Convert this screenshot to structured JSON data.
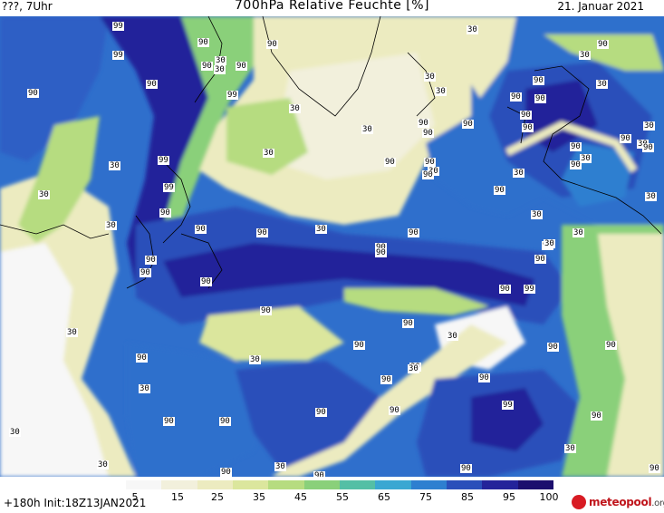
{
  "header": {
    "left": "???, 7Uhr",
    "title": "700hPa Relative Feuchte [%]",
    "date": "21. Januar 2021"
  },
  "map": {
    "labels": {
      "l1": "99",
      "l2": "99",
      "l3": "90",
      "l4": "90",
      "l5": "90",
      "l6": "30",
      "l7": "90",
      "l8": "30",
      "l9": "90",
      "l10": "99",
      "l11": "90",
      "l12": "30",
      "l13": "30",
      "l14": "90",
      "l15": "99",
      "l16": "99",
      "l17": "90",
      "l18": "30",
      "l19": "30",
      "l20": "90",
      "l21": "90",
      "l22": "90",
      "l23": "30",
      "l24": "90",
      "l25": "30",
      "l26": "90",
      "l27": "90",
      "l28": "90",
      "l29": "30",
      "l30": "90",
      "l31": "90",
      "l32": "90",
      "l33": "30",
      "l34": "90",
      "l35": "30",
      "l36": "90",
      "l37": "30",
      "l38": "90",
      "l39": "30",
      "l40": "90",
      "l41": "30",
      "l42": "30",
      "l43": "90",
      "l44": "90",
      "l45": "90",
      "l46": "90",
      "l47": "90",
      "l48": "90",
      "l49": "90",
      "l50": "30",
      "l51": "90",
      "l52": "90",
      "l53": "30",
      "l54": "90",
      "l55": "99",
      "l56": "30",
      "l57": "90",
      "l58": "30",
      "l59": "90",
      "l60": "90",
      "l61": "30",
      "l62": "90",
      "l63": "90",
      "l64": "90",
      "l65": "90",
      "l66": "99",
      "l67": "30",
      "l68": "30",
      "l69": "90",
      "l70": "30",
      "l71": "90",
      "l72": "90",
      "l73": "90",
      "l74": "30",
      "l75": "30",
      "l76": "90",
      "l77": "90",
      "l78": "30",
      "l79": "90",
      "l80": "30",
      "l81": "90",
      "l82": "90",
      "l83": "90",
      "l84": "30",
      "l85": "30",
      "l86": "30",
      "l87": "30",
      "l88": "30",
      "l89": "30",
      "l90": "90",
      "l91": "90",
      "l92": "90"
    }
  },
  "legend": {
    "ticks": [
      "5",
      "15",
      "25",
      "35",
      "45",
      "55",
      "65",
      "75",
      "85",
      "95",
      "100"
    ],
    "colors": [
      "#f7f7f7",
      "#f2f0dc",
      "#ecebc0",
      "#dbe69d",
      "#b6dc80",
      "#8ad07a",
      "#54bfa5",
      "#3aa7d2",
      "#2e7fd0",
      "#2a4fba",
      "#24239a",
      "#1c0f6e"
    ]
  },
  "footer": {
    "run": "+180h  Init:18Z13JAN2021",
    "logo": "meteopool",
    "logo_suffix": ".org"
  }
}
